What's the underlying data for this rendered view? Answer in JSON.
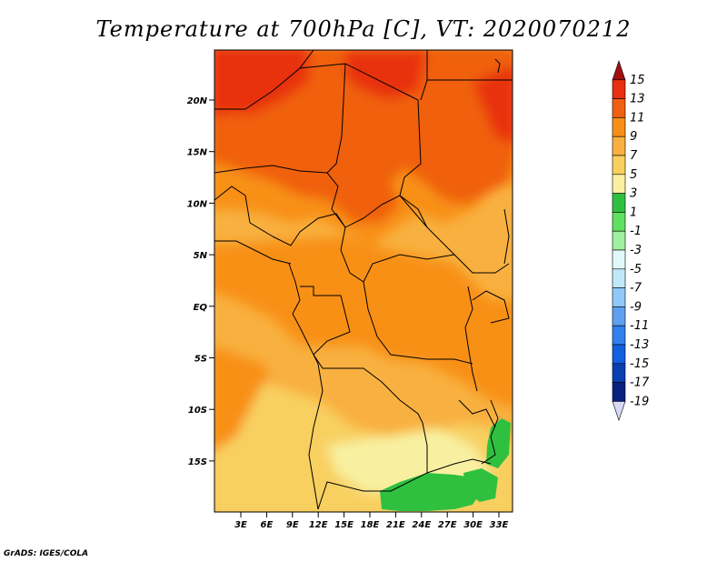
{
  "title": "Temperature at 700hPa [C], VT: 2020070212",
  "credit": "GrADS: IGES/COLA",
  "map": {
    "lat_ticks": [
      "20N",
      "15N",
      "10N",
      "5N",
      "EQ",
      "5S",
      "10S",
      "15S"
    ],
    "lon_ticks": [
      "3E",
      "6E",
      "9E",
      "12E",
      "15E",
      "18E",
      "21E",
      "24E",
      "27E",
      "30E",
      "33E"
    ]
  },
  "colorbar": {
    "levels": [
      "15",
      "13",
      "11",
      "9",
      "7",
      "5",
      "3",
      "1",
      "-1",
      "-3",
      "-5",
      "-7",
      "-9",
      "-11",
      "-13",
      "-15",
      "-17",
      "-19"
    ],
    "colors": [
      "#a01010",
      "#e83010",
      "#f06010",
      "#f89018",
      "#f8b040",
      "#f8d060",
      "#f8f0a0",
      "#30c040",
      "#60e060",
      "#a0f0a0",
      "#e0f8f8",
      "#c0e8f8",
      "#90c8f8",
      "#60a0f0",
      "#3080f0",
      "#1060e0",
      "#0840b0",
      "#082080",
      "#d8d8f8"
    ]
  }
}
